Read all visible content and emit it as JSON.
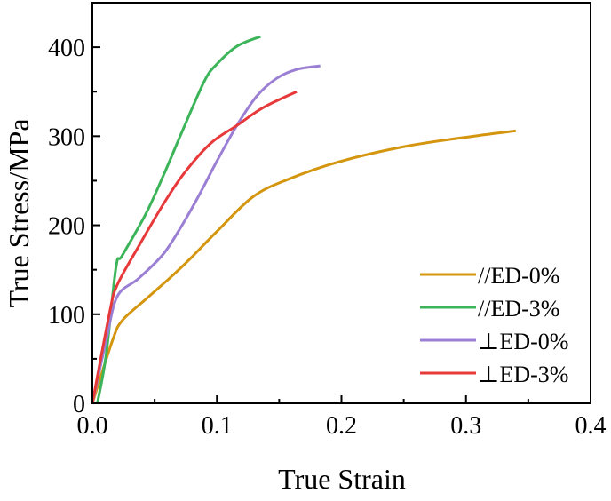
{
  "chart_data": {
    "type": "line",
    "title": "",
    "xlabel": "True Strain",
    "ylabel": "True Stress/MPa",
    "xlim": [
      0,
      0.4
    ],
    "ylim": [
      0,
      450
    ],
    "xticks": [
      0,
      0.1,
      0.2,
      0.3,
      0.4
    ],
    "xtick_labels": [
      "0.0",
      "0.1",
      "0.2",
      "0.3",
      "0.4"
    ],
    "yticks": [
      0,
      100,
      200,
      300,
      400
    ],
    "ytick_labels": [
      "0",
      "100",
      "200",
      "300",
      "400"
    ],
    "grid": false,
    "legend_position": "bottom-right",
    "series": [
      {
        "name": "//ED-0%",
        "color": "#D4960F",
        "x": [
          0,
          0.016,
          0.024,
          0.043,
          0.064,
          0.079,
          0.1,
          0.129,
          0.158,
          0.2,
          0.253,
          0.306,
          0.34
        ],
        "y": [
          0,
          70,
          93,
          117,
          143,
          163,
          193,
          232,
          252,
          272,
          289,
          300,
          306
        ]
      },
      {
        "name": "//ED-3%",
        "color": "#3CB55A",
        "x": [
          0.004,
          0.011,
          0.019,
          0.024,
          0.043,
          0.058,
          0.072,
          0.09,
          0.1,
          0.116,
          0.135
        ],
        "y": [
          0,
          54,
          153,
          166,
          213,
          259,
          305,
          362,
          381,
          401,
          412
        ]
      },
      {
        "name": "⊥ED-0%",
        "color": "#9B7FD4",
        "x": [
          0,
          0.011,
          0.02,
          0.037,
          0.056,
          0.069,
          0.085,
          0.1,
          0.116,
          0.132,
          0.148,
          0.164,
          0.183
        ],
        "y": [
          0,
          70,
          120,
          140,
          166,
          193,
          232,
          272,
          312,
          345,
          365,
          375,
          379
        ]
      },
      {
        "name": "⊥ED-3%",
        "color": "#E8393A",
        "x": [
          0,
          0.014,
          0.02,
          0.037,
          0.058,
          0.074,
          0.095,
          0.116,
          0.137,
          0.164
        ],
        "y": [
          0,
          103,
          133,
          176,
          226,
          259,
          292,
          312,
          332,
          350
        ]
      }
    ]
  }
}
